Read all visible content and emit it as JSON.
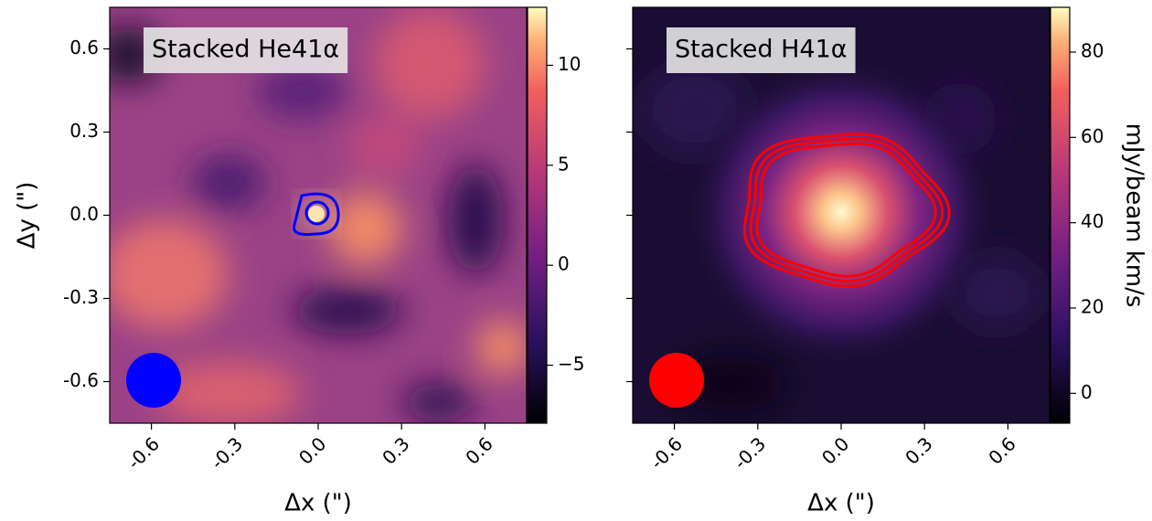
{
  "chart_data": [
    {
      "type": "heatmap",
      "title": "Stacked He41α",
      "xlabel": "Δx (\")",
      "ylabel": "Δy (\")",
      "xlim": [
        -0.75,
        0.75
      ],
      "ylim": [
        -0.75,
        0.75
      ],
      "xticks": [
        -0.6,
        -0.3,
        {
          "value": 0,
          "label": "0.0"
        },
        0.3,
        0.6
      ],
      "yticks": [
        -0.6,
        -0.3,
        {
          "value": 0,
          "label": "0.0"
        },
        0.3,
        0.6
      ],
      "colorbar": {
        "lim": [
          -7.9,
          12.9
        ],
        "ticks": [
          {
            "value": -5,
            "label": "−5"
          },
          0,
          5,
          10
        ]
      },
      "contour_color": "#0000ff"
    },
    {
      "type": "heatmap",
      "title": "Stacked H41α",
      "xlabel": "Δx (\")",
      "xlim": [
        -0.75,
        0.75
      ],
      "ylim": [
        -0.75,
        0.75
      ],
      "xticks": [
        -0.6,
        -0.3,
        {
          "value": 0,
          "label": "0.0"
        },
        0.3,
        0.6
      ],
      "yticks": [
        -0.6,
        -0.3,
        {
          "value": 0,
          "label": "0.0"
        },
        0.3,
        0.6
      ],
      "colorbar": {
        "label": "mJy/beam km/s",
        "lim": [
          -7,
          90.5
        ],
        "ticks": [
          0,
          20,
          40,
          60,
          80
        ]
      },
      "contour_color": "#ff0000"
    }
  ]
}
